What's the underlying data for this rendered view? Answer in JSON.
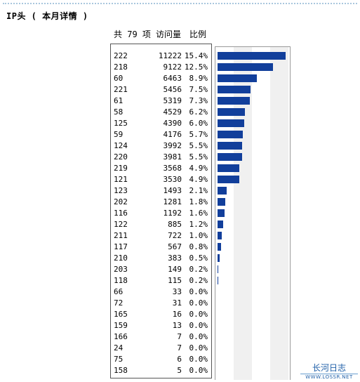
{
  "title": "IP头 ( 本月详情 )",
  "header": {
    "count_label": "共 79 项",
    "visits_label": "访问量",
    "ratio_label": "比例"
  },
  "rows": [
    {
      "ip": "222",
      "visits": "11222",
      "ratio": "15.4%",
      "pct": 15.4
    },
    {
      "ip": "218",
      "visits": "9122",
      "ratio": "12.5%",
      "pct": 12.5
    },
    {
      "ip": "60",
      "visits": "6463",
      "ratio": "8.9%",
      "pct": 8.9
    },
    {
      "ip": "221",
      "visits": "5456",
      "ratio": "7.5%",
      "pct": 7.5
    },
    {
      "ip": "61",
      "visits": "5319",
      "ratio": "7.3%",
      "pct": 7.3
    },
    {
      "ip": "58",
      "visits": "4529",
      "ratio": "6.2%",
      "pct": 6.2
    },
    {
      "ip": "125",
      "visits": "4390",
      "ratio": "6.0%",
      "pct": 6.0
    },
    {
      "ip": "59",
      "visits": "4176",
      "ratio": "5.7%",
      "pct": 5.7
    },
    {
      "ip": "124",
      "visits": "3992",
      "ratio": "5.5%",
      "pct": 5.5
    },
    {
      "ip": "220",
      "visits": "3981",
      "ratio": "5.5%",
      "pct": 5.5
    },
    {
      "ip": "219",
      "visits": "3568",
      "ratio": "4.9%",
      "pct": 4.9
    },
    {
      "ip": "121",
      "visits": "3530",
      "ratio": "4.9%",
      "pct": 4.9
    },
    {
      "ip": "123",
      "visits": "1493",
      "ratio": "2.1%",
      "pct": 2.1
    },
    {
      "ip": "202",
      "visits": "1281",
      "ratio": "1.8%",
      "pct": 1.8
    },
    {
      "ip": "116",
      "visits": "1192",
      "ratio": "1.6%",
      "pct": 1.6
    },
    {
      "ip": "122",
      "visits": "885",
      "ratio": "1.2%",
      "pct": 1.2
    },
    {
      "ip": "211",
      "visits": "722",
      "ratio": "1.0%",
      "pct": 1.0
    },
    {
      "ip": "117",
      "visits": "567",
      "ratio": "0.8%",
      "pct": 0.8
    },
    {
      "ip": "210",
      "visits": "383",
      "ratio": "0.5%",
      "pct": 0.5
    },
    {
      "ip": "203",
      "visits": "149",
      "ratio": "0.2%",
      "pct": 0.2
    },
    {
      "ip": "118",
      "visits": "115",
      "ratio": "0.2%",
      "pct": 0.2
    },
    {
      "ip": "66",
      "visits": "33",
      "ratio": "0.0%",
      "pct": 0.0
    },
    {
      "ip": "72",
      "visits": "31",
      "ratio": "0.0%",
      "pct": 0.0
    },
    {
      "ip": "165",
      "visits": "16",
      "ratio": "0.0%",
      "pct": 0.0
    },
    {
      "ip": "159",
      "visits": "13",
      "ratio": "0.0%",
      "pct": 0.0
    },
    {
      "ip": "166",
      "visits": "7",
      "ratio": "0.0%",
      "pct": 0.0
    },
    {
      "ip": "24",
      "visits": "7",
      "ratio": "0.0%",
      "pct": 0.0
    },
    {
      "ip": "75",
      "visits": "6",
      "ratio": "0.0%",
      "pct": 0.0
    },
    {
      "ip": "158",
      "visits": "5",
      "ratio": "0.0%",
      "pct": 0.0
    }
  ],
  "bar_color": "#123f9b",
  "logo": {
    "name": "长河日志",
    "url": "WWW.LOSSR.NET"
  }
}
